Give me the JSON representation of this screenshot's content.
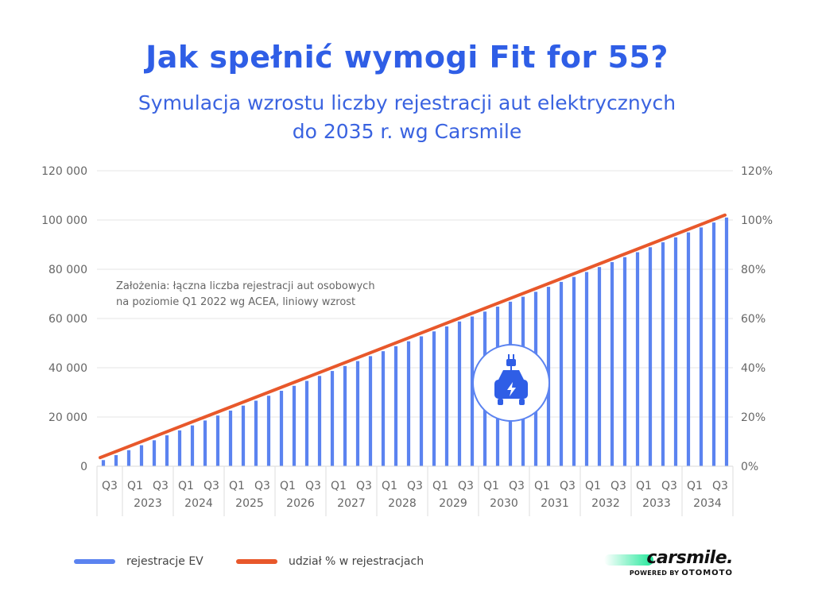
{
  "header": {
    "title": "Jak spełnić wymogi Fit for 55?",
    "subtitle_line1": "Symulacja wzrostu liczby rejestracji aut elektrycznych",
    "subtitle_line2": "do 2035 r. wg Carsmile"
  },
  "chart_data": {
    "type": "bar",
    "annotation": [
      "Założenia: łączna liczba rejestracji aut osobowych",
      "na poziomie Q1 2022 wg ACEA, liniowy wzrost"
    ],
    "y_left": {
      "ticks": [
        "120 000",
        "100 000",
        "80 000",
        "60 000",
        "40 000",
        "20 000",
        "0"
      ],
      "lim": [
        0,
        120000
      ]
    },
    "y_right": {
      "ticks": [
        "120%",
        "100%",
        "80%",
        "60%",
        "40%",
        "20%",
        "0%"
      ],
      "lim": [
        0,
        120
      ]
    },
    "x_groups": [
      {
        "year": "",
        "quarters": [
          "Q3"
        ]
      },
      {
        "year": "2023",
        "quarters": [
          "Q1",
          "Q3"
        ]
      },
      {
        "year": "2024",
        "quarters": [
          "Q1",
          "Q3"
        ]
      },
      {
        "year": "2025",
        "quarters": [
          "Q1",
          "Q3"
        ]
      },
      {
        "year": "2026",
        "quarters": [
          "Q1",
          "Q3"
        ]
      },
      {
        "year": "2027",
        "quarters": [
          "Q1",
          "Q3"
        ]
      },
      {
        "year": "2028",
        "quarters": [
          "Q1",
          "Q3"
        ]
      },
      {
        "year": "2029",
        "quarters": [
          "Q1",
          "Q3"
        ]
      },
      {
        "year": "2030",
        "quarters": [
          "Q1",
          "Q3"
        ]
      },
      {
        "year": "2031",
        "quarters": [
          "Q1",
          "Q3"
        ]
      },
      {
        "year": "2032",
        "quarters": [
          "Q1",
          "Q3"
        ]
      },
      {
        "year": "2033",
        "quarters": [
          "Q1",
          "Q3"
        ]
      },
      {
        "year": "2034",
        "quarters": [
          "Q1",
          "Q3"
        ]
      }
    ],
    "series": [
      {
        "name": "rejestracje EV",
        "axis": "left",
        "color": "#5b83f0",
        "type": "bar",
        "start_value": 2500,
        "end_value": 101000,
        "count": 50
      },
      {
        "name": "udział % w rejestracjach",
        "axis": "right",
        "color": "#e8582b",
        "type": "line",
        "start_value": 3.5,
        "end_value": 102
      }
    ],
    "grid": true,
    "legend_position": "bottom-left"
  },
  "legend": [
    {
      "label": "rejestracje EV",
      "color": "#5b83f0"
    },
    {
      "label": "udział % w rejestracjach",
      "color": "#e8582b"
    }
  ],
  "brand": {
    "name": "carsmile.",
    "powered_by": "POWERED BY",
    "partner": "OTOMOTO"
  },
  "icons": {
    "center_badge": "ev-car-plug-icon"
  }
}
